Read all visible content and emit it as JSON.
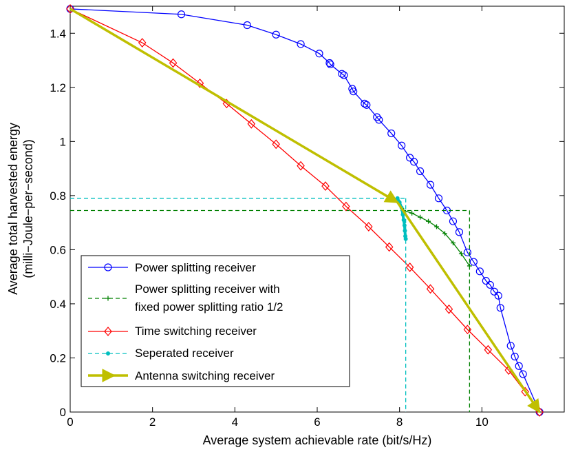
{
  "chart_data": {
    "type": "line",
    "xlabel": "Average system achievable rate (bit/s/Hz)",
    "ylabel_lines": [
      "Average total harvested energy",
      "(milli−Joule−per−second)"
    ],
    "xlim": [
      0,
      12
    ],
    "ylim": [
      0,
      1.5
    ],
    "xticks": [
      0,
      2,
      4,
      6,
      8,
      10
    ],
    "yticks": [
      0,
      0.2,
      0.4,
      0.6,
      0.8,
      1,
      1.2,
      1.4
    ],
    "xtick_labels": [
      "0",
      "2",
      "4",
      "6",
      "8",
      "10"
    ],
    "ytick_labels": [
      "0",
      "0.2",
      "0.4",
      "0.6",
      "0.8",
      "1",
      "1.2",
      "1.4"
    ],
    "grid": false,
    "legend_position": "bottom-left",
    "series": [
      {
        "name": "Power splitting receiver",
        "color": "#0000ff",
        "marker": "circle",
        "line": "solid",
        "x": [
          0,
          2.7,
          4.3,
          5.0,
          5.6,
          6.05,
          6.3,
          6.32,
          6.6,
          6.65,
          6.85,
          6.88,
          7.15,
          7.2,
          7.45,
          7.5,
          7.8,
          8.05,
          8.25,
          8.35,
          8.5,
          8.75,
          8.95,
          9.15,
          9.3,
          9.45,
          9.65,
          9.8,
          9.95,
          10.1,
          10.2,
          10.3,
          10.4,
          10.45,
          10.7,
          10.8,
          10.9,
          11.0,
          11.4
        ],
        "y": [
          1.49,
          1.47,
          1.43,
          1.395,
          1.36,
          1.325,
          1.29,
          1.285,
          1.25,
          1.245,
          1.195,
          1.185,
          1.14,
          1.135,
          1.09,
          1.08,
          1.03,
          0.985,
          0.94,
          0.925,
          0.89,
          0.84,
          0.79,
          0.745,
          0.705,
          0.665,
          0.59,
          0.555,
          0.52,
          0.485,
          0.47,
          0.445,
          0.43,
          0.385,
          0.245,
          0.205,
          0.17,
          0.14,
          0
        ]
      },
      {
        "name": "Power splitting receiver with fixed power splitting ratio 1/2",
        "color": "#008000",
        "marker": "plus",
        "line": "dashed",
        "x": [
          8.1,
          8.3,
          8.5,
          8.7,
          8.9,
          9.1,
          9.3,
          9.5,
          9.7
        ],
        "y": [
          0.745,
          0.735,
          0.72,
          0.705,
          0.685,
          0.66,
          0.625,
          0.585,
          0.54
        ],
        "refline": {
          "x": 9.7,
          "y": 0.745
        }
      },
      {
        "name": "Time switching receiver",
        "color": "#ff0000",
        "marker": "diamond",
        "line": "solid",
        "x": [
          0,
          1.75,
          2.5,
          3.15,
          3.8,
          4.4,
          5.0,
          5.6,
          6.2,
          6.7,
          7.25,
          7.75,
          8.25,
          8.75,
          9.2,
          9.65,
          10.15,
          10.65,
          11.05,
          11.4
        ],
        "y": [
          1.49,
          1.365,
          1.29,
          1.215,
          1.14,
          1.065,
          0.99,
          0.91,
          0.835,
          0.76,
          0.685,
          0.61,
          0.535,
          0.455,
          0.38,
          0.305,
          0.23,
          0.155,
          0.075,
          0
        ]
      },
      {
        "name": "Seperated receiver",
        "color": "#00bfbf",
        "marker": "dot",
        "line": "dashed",
        "x": [
          7.95,
          8.0,
          8.05,
          8.08,
          8.1,
          8.12,
          8.13,
          8.14,
          8.15
        ],
        "y": [
          0.79,
          0.775,
          0.755,
          0.73,
          0.71,
          0.69,
          0.67,
          0.65,
          0.64
        ],
        "refline": {
          "x": 8.15,
          "y": 0.79
        }
      },
      {
        "name": "Antenna switching receiver",
        "color": "#bfbf00",
        "marker": "triangle",
        "line": "solid",
        "x": [
          0,
          7.95,
          11.4
        ],
        "y": [
          1.49,
          0.775,
          0
        ]
      }
    ]
  }
}
